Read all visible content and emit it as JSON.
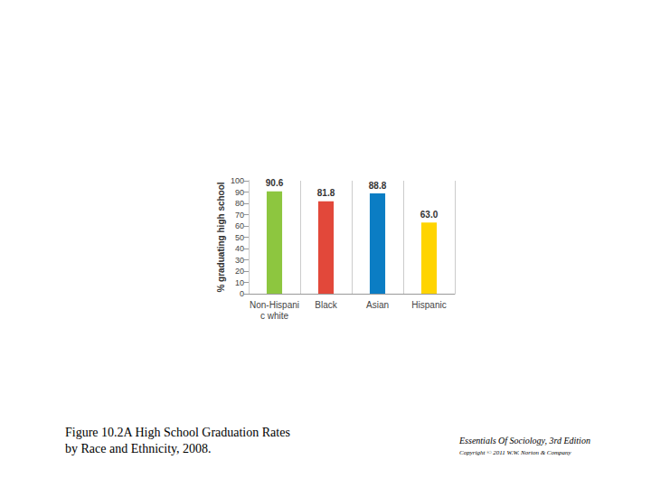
{
  "chart_data": {
    "type": "bar",
    "y_label": "% graduating high school",
    "categories": [
      "Non-Hispanic white",
      "Black",
      "Asian",
      "Hispanic"
    ],
    "values": [
      90.6,
      81.8,
      88.8,
      63.0
    ],
    "value_labels": [
      "90.6",
      "81.8",
      "88.8",
      "63.0"
    ],
    "colors": [
      "#8dc63f",
      "#e2483a",
      "#0b7dc4",
      "#ffd400"
    ],
    "ylim": [
      0,
      100
    ],
    "yticks": [
      0,
      10,
      20,
      30,
      40,
      50,
      60,
      70,
      80,
      90,
      100
    ],
    "grid": false,
    "data_labels": true
  },
  "caption": [
    "Figure 10.2A High School Graduation Rates",
    "by Race and Ethnicity, 2008."
  ],
  "source": "Essentials Of Sociology, 3rd Edition",
  "copyright": "Copyright © 2011 W.W. Norton & Company"
}
